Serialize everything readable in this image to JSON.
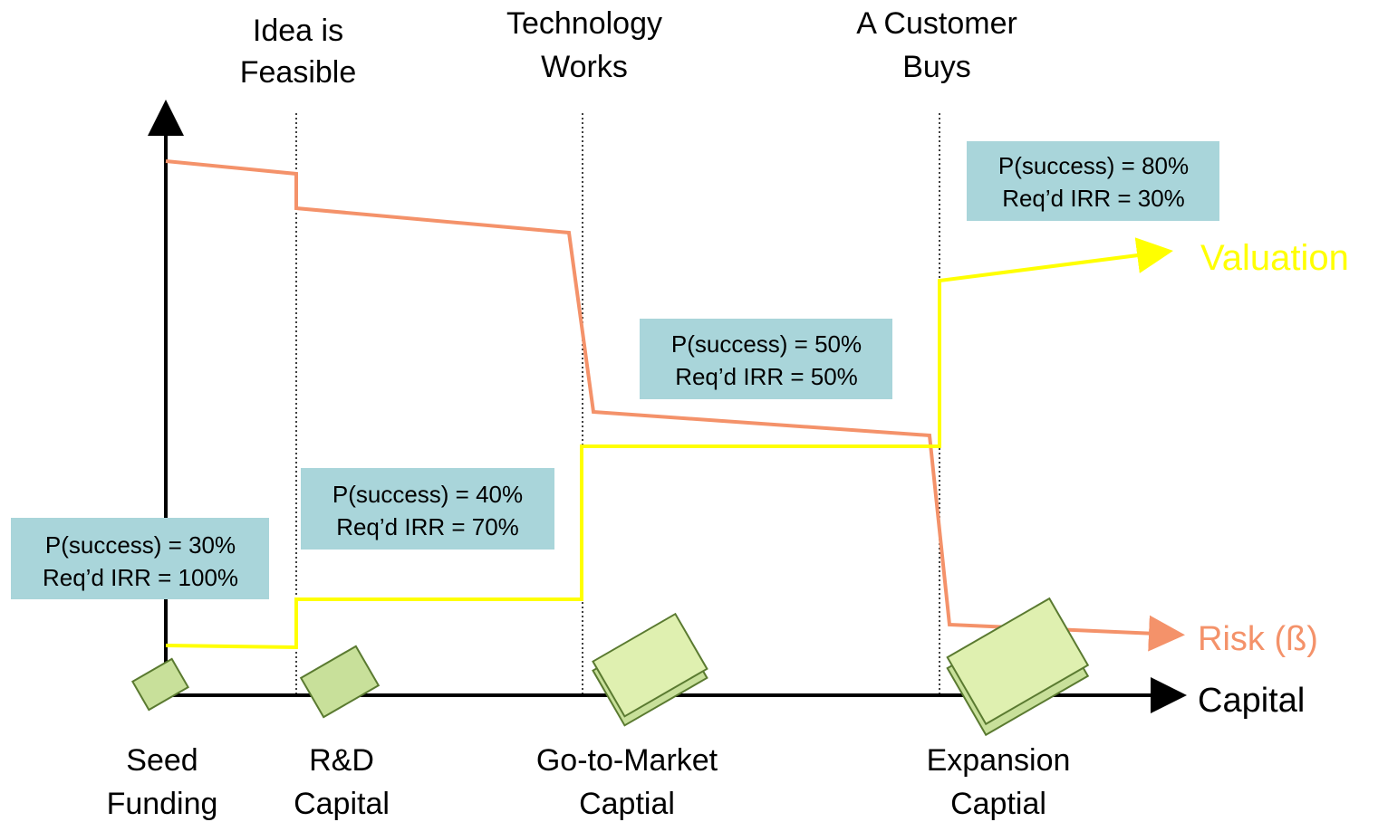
{
  "milestones": [
    {
      "lines": [
        "Idea is",
        "Feasible"
      ]
    },
    {
      "lines": [
        "Technology",
        "Works"
      ]
    },
    {
      "lines": [
        "A Customer",
        "Buys"
      ]
    }
  ],
  "stages": [
    {
      "lines": [
        "Seed",
        "Funding"
      ]
    },
    {
      "lines": [
        "R&D",
        "Capital"
      ]
    },
    {
      "lines": [
        "Go-to-Market",
        "Captial"
      ]
    },
    {
      "lines": [
        "Expansion",
        "Captial"
      ]
    }
  ],
  "boxes": [
    {
      "lines": [
        "P(success) = 30%",
        "Req’d IRR = 100%"
      ]
    },
    {
      "lines": [
        "P(success) = 40%",
        "Req’d IRR = 70%"
      ]
    },
    {
      "lines": [
        "P(success) = 50%",
        "Req’d IRR = 50%"
      ]
    },
    {
      "lines": [
        "P(success) = 80%",
        "Req’d IRR = 30%"
      ]
    }
  ],
  "axis": {
    "x_label": "Capital"
  },
  "lines": {
    "valuation": "Valuation",
    "risk": "Risk (ß)"
  }
}
